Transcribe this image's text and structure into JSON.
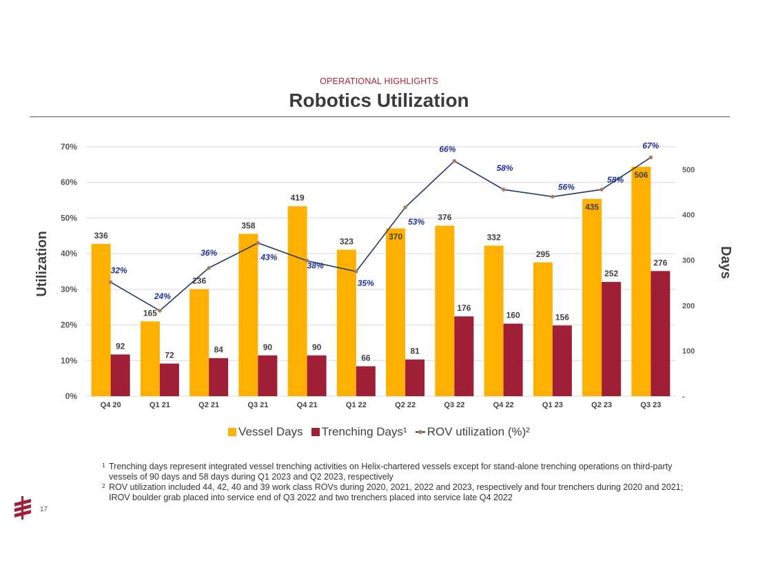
{
  "header": {
    "section_label": "OPERATIONAL HIGHLIGHTS",
    "title": "Robotics Utilization"
  },
  "chart_data": {
    "type": "bar",
    "categories": [
      "Q4 20",
      "Q1 21",
      "Q2 21",
      "Q3 21",
      "Q4 21",
      "Q1 22",
      "Q2 22",
      "Q3 22",
      "Q4 22",
      "Q1 23",
      "Q2 23",
      "Q3 23"
    ],
    "series": [
      {
        "name": "Vessel Days",
        "type": "bar",
        "axis": "right",
        "color": "#ffb000",
        "values": [
          336,
          165,
          236,
          358,
          419,
          323,
          370,
          376,
          332,
          295,
          435,
          506
        ]
      },
      {
        "name": "Trenching Days¹",
        "type": "bar",
        "axis": "right",
        "color": "#9f1f36",
        "values": [
          92,
          72,
          84,
          90,
          90,
          66,
          81,
          176,
          160,
          156,
          252,
          276
        ]
      },
      {
        "name": "ROV utilization (%)²",
        "type": "line",
        "axis": "left",
        "color": "#1f3864",
        "marker_color": "#b07a62",
        "values": [
          32,
          24,
          36,
          43,
          38,
          35,
          53,
          66,
          58,
          56,
          58,
          67
        ]
      }
    ],
    "left_axis": {
      "label": "Utilization",
      "ticks": [
        "0%",
        "10%",
        "20%",
        "30%",
        "40%",
        "50%",
        "60%",
        "70%"
      ],
      "range": [
        0,
        70
      ]
    },
    "right_axis": {
      "label": "Days",
      "ticks": [
        "-",
        "100",
        "200",
        "300",
        "400",
        "500"
      ],
      "range": [
        0,
        550
      ]
    },
    "legend_placement": "bottom",
    "grid": true
  },
  "footnotes": [
    {
      "mark": "1",
      "text": "Trenching days represent integrated vessel trenching activities on Helix-chartered vessels except for stand-alone trenching operations on third-party vessels of 90 days and 58 days during Q1 2023 and Q2 2023, respectively"
    },
    {
      "mark": "2",
      "text": "ROV utilization included 44, 42, 40 and 39 work class ROVs during 2020, 2021, 2022 and 2023, respectively and four trenchers during 2020 and 2021; IROV boulder grab placed into service end of Q3 2022 and two trenchers placed into service late Q4 2022"
    }
  ],
  "page_number": "17",
  "logo_icon": "helix-logo-icon"
}
